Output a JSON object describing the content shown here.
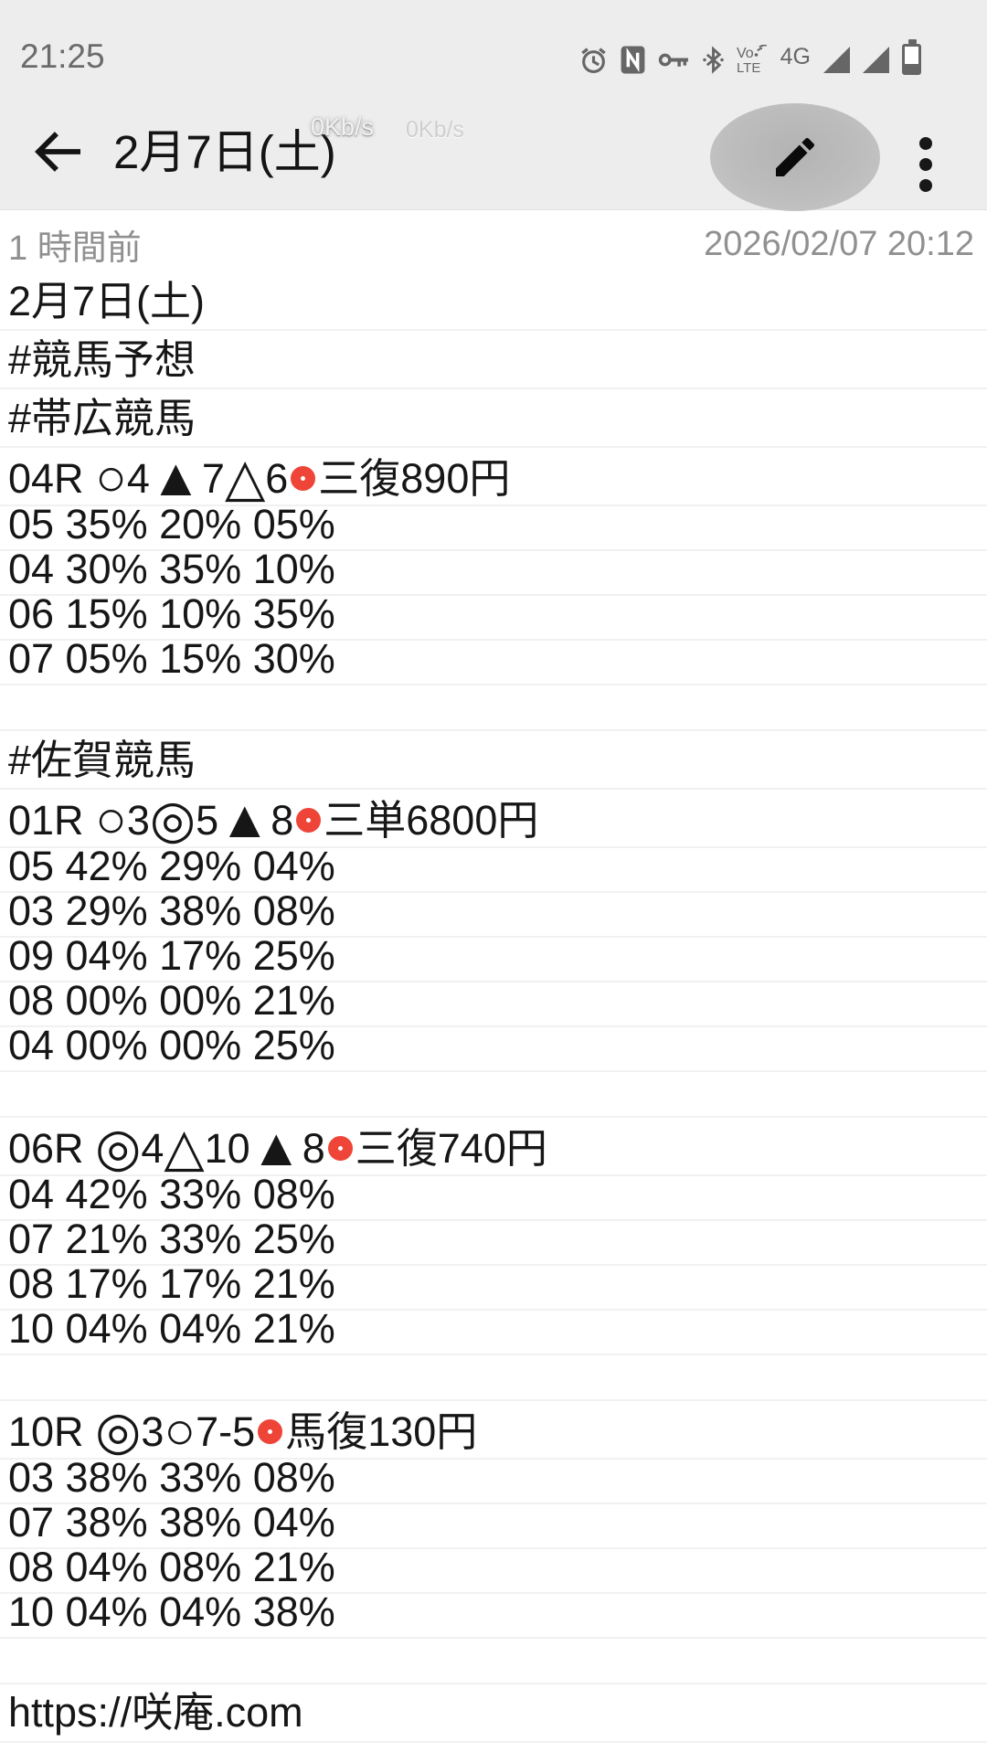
{
  "status_bar": {
    "time": "21:25",
    "network_type": "4G",
    "volte": {
      "line1": "Vo",
      "line2": "LTE"
    },
    "icons": [
      "alarm-icon",
      "nfc-icon",
      "key-icon",
      "bluetooth-icon",
      "volte-icon",
      "network-type-label",
      "signal-icon",
      "signal-icon-2",
      "battery-icon"
    ]
  },
  "header": {
    "title": "2月7日(土)",
    "speed_overlay_1": "0Kb/s",
    "speed_overlay_2": "0Kb/s"
  },
  "meta": {
    "relative_time": "1 時間前",
    "timestamp": "2026/02/07 20:12"
  },
  "note": {
    "lines": [
      {
        "type": "cjk",
        "text": "2月7日(土)"
      },
      {
        "type": "cjk",
        "text": "#競馬予想"
      },
      {
        "type": "cjk",
        "text": "#帯広競馬"
      },
      {
        "type": "race",
        "text": "04R ○4▲7△6⭕三復890円"
      },
      {
        "type": "num",
        "text": "05 35% 20% 05%"
      },
      {
        "type": "num",
        "text": "04 30% 35% 10%"
      },
      {
        "type": "num",
        "text": "06 15% 10% 35%"
      },
      {
        "type": "num",
        "text": "07 05% 15% 30%"
      },
      {
        "type": "blank",
        "text": ""
      },
      {
        "type": "cjk",
        "text": "#佐賀競馬"
      },
      {
        "type": "race",
        "text": "01R ○3◎5▲8⭕三単6800円"
      },
      {
        "type": "num",
        "text": "05 42% 29% 04%"
      },
      {
        "type": "num",
        "text": "03 29% 38% 08%"
      },
      {
        "type": "num",
        "text": "09 04% 17% 25%"
      },
      {
        "type": "num",
        "text": "08 00% 00% 21%"
      },
      {
        "type": "num",
        "text": "04 00% 00% 25%"
      },
      {
        "type": "blank",
        "text": ""
      },
      {
        "type": "race",
        "text": "06R ◎4△10▲8⭕三復740円"
      },
      {
        "type": "num",
        "text": "04 42% 33% 08%"
      },
      {
        "type": "num",
        "text": "07 21% 33% 25%"
      },
      {
        "type": "num",
        "text": "08 17% 17% 21%"
      },
      {
        "type": "num",
        "text": "10 04% 04% 21%"
      },
      {
        "type": "blank",
        "text": ""
      },
      {
        "type": "race",
        "text": "10R ◎3○7-5⭕馬復130円"
      },
      {
        "type": "num",
        "text": "03 38% 33% 08%"
      },
      {
        "type": "num",
        "text": "07 38% 38% 04%"
      },
      {
        "type": "num",
        "text": "08 04% 08% 21%"
      },
      {
        "type": "num",
        "text": "10 04% 04% 38%"
      },
      {
        "type": "blank",
        "text": ""
      },
      {
        "type": "url",
        "text": "https://咲庵.com"
      }
    ]
  },
  "colors": {
    "accent_red": "#ef4438",
    "chrome_bg": "#ededed",
    "rule": "#f1f1f1",
    "muted_text": "#909090",
    "icon_gray": "#666666"
  }
}
